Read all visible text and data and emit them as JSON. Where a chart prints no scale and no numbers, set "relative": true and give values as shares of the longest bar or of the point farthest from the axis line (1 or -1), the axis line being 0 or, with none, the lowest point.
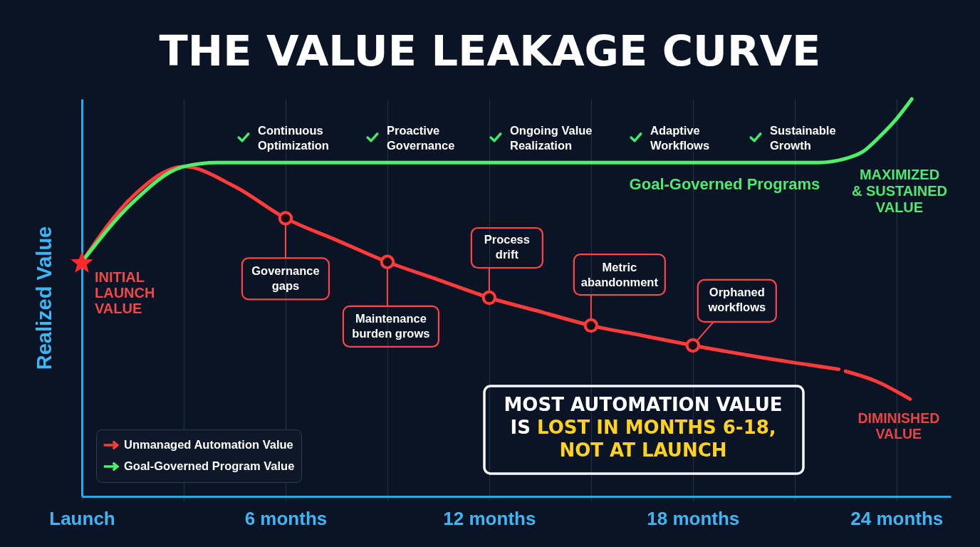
{
  "chart_data": {
    "type": "line",
    "title": "THE VALUE LEAKAGE CURVE",
    "ylabel": "Realized Value",
    "relative": true,
    "xlim": [
      0,
      25.6
    ],
    "xticks": [
      {
        "value": 0,
        "label": "Launch"
      },
      {
        "value": 3,
        "label": null
      },
      {
        "value": 6,
        "label": "6 months"
      },
      {
        "value": 9,
        "label": null
      },
      {
        "value": 12,
        "label": "12 months"
      },
      {
        "value": 15,
        "label": null
      },
      {
        "value": 18,
        "label": "18 months"
      },
      {
        "value": 21,
        "label": null
      },
      {
        "value": 24,
        "label": "24 months"
      }
    ],
    "grid": "x",
    "legend": "bottom left",
    "line_style": "solid",
    "series": [
      {
        "name": "Unmanaged Automation Value",
        "color": "#ff3b3b",
        "x": [
          0,
          1.5,
          3,
          4.5,
          6,
          7.5,
          9,
          10.5,
          12,
          13.5,
          15,
          16.5,
          18,
          20,
          22.3,
          22.4,
          22.5,
          23.4,
          24.4
        ],
        "values": [
          0.59,
          0.755,
          0.83,
          0.78,
          0.7,
          0.645,
          0.59,
          0.545,
          0.5,
          0.465,
          0.43,
          0.405,
          0.38,
          0.35,
          0.32,
          null,
          0.315,
          0.29,
          0.245
        ]
      },
      {
        "name": "Goal-Governed Program Value",
        "color": "#4cf06a",
        "x": [
          0,
          1.5,
          3,
          4,
          8,
          12,
          16,
          20,
          21.7,
          22.5,
          23,
          23.5,
          24,
          24.45
        ],
        "values": [
          0.59,
          0.74,
          0.83,
          0.84,
          0.84,
          0.84,
          0.84,
          0.84,
          0.84,
          0.85,
          0.867,
          0.905,
          0.95,
          1.0
        ]
      },
      {
        "type": "scatter",
        "color": "#ff3b3b",
        "marker": "circle",
        "x": [
          6,
          9,
          12,
          15,
          18
        ],
        "values": [
          0.7,
          0.59,
          0.5,
          0.43,
          0.38
        ]
      },
      {
        "type": "scatter",
        "color": "#ff2a2a",
        "marker": "star",
        "x": [
          0
        ],
        "values": [
          0.59
        ]
      }
    ],
    "annotations": [
      {
        "text": "INITIAL LAUNCH VALUE",
        "x": 0,
        "y": 0.59
      },
      "Continuous Optimization",
      "Proactive Governance",
      "Ongoing Value Realization",
      "Adaptive Workflows",
      "Sustainable Growth",
      {
        "text": "Goal-Governed Programs",
        "x": 19,
        "y": 0.84
      },
      "MAXIMIZED & SUSTAINED VALUE",
      {
        "text": "Governance gaps",
        "x": 6,
        "y": 0.7
      },
      {
        "text": "Maintenance burden grows",
        "x": 9,
        "y": 0.59
      },
      {
        "text": "Process drift",
        "x": 12,
        "y": 0.5
      },
      {
        "text": "Metric abandonment",
        "x": 15,
        "y": 0.43
      },
      {
        "text": "Orphaned workflows",
        "x": 18,
        "y": 0.38
      },
      {
        "text": "DIMINISHED VALUE",
        "x": 24.4,
        "y": 0.245
      },
      "MOST AUTOMATION VALUE IS",
      "LOST IN MONTHS 6-18, NOT AT LAUNCH"
    ]
  }
}
